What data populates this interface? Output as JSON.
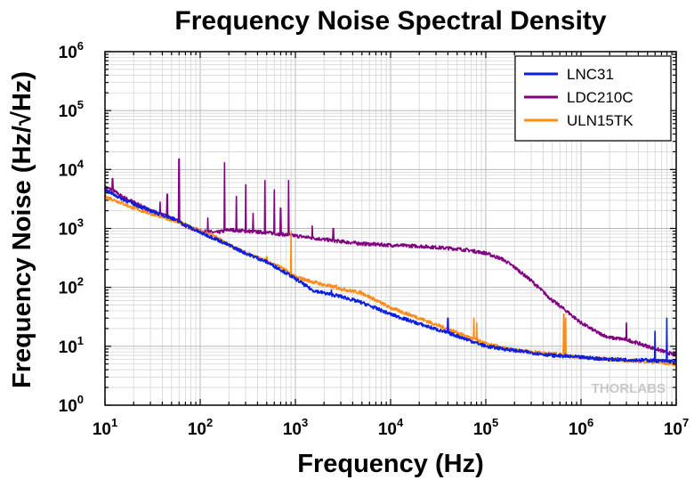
{
  "chart_data": {
    "type": "line",
    "title": "Frequency Noise Spectral Density",
    "xlabel": "Frequency (Hz)",
    "ylabel": "Frequency Noise (Hz/√Hz)",
    "x_scale": "log",
    "y_scale": "log",
    "xlim": [
      10,
      10000000
    ],
    "ylim": [
      1,
      1000000
    ],
    "x_ticks": [
      {
        "value": 10,
        "base": "10",
        "exp": "1"
      },
      {
        "value": 100,
        "base": "10",
        "exp": "2"
      },
      {
        "value": 1000,
        "base": "10",
        "exp": "3"
      },
      {
        "value": 10000,
        "base": "10",
        "exp": "4"
      },
      {
        "value": 100000,
        "base": "10",
        "exp": "5"
      },
      {
        "value": 1000000,
        "base": "10",
        "exp": "6"
      },
      {
        "value": 10000000,
        "base": "10",
        "exp": "7"
      }
    ],
    "y_ticks": [
      {
        "value": 1,
        "base": "10",
        "exp": "0"
      },
      {
        "value": 10,
        "base": "10",
        "exp": "1"
      },
      {
        "value": 100,
        "base": "10",
        "exp": "2"
      },
      {
        "value": 1000,
        "base": "10",
        "exp": "3"
      },
      {
        "value": 10000,
        "base": "10",
        "exp": "4"
      },
      {
        "value": 100000,
        "base": "10",
        "exp": "5"
      },
      {
        "value": 1000000,
        "base": "10",
        "exp": "6"
      }
    ],
    "grid": true,
    "legend_position": "top-right",
    "series": [
      {
        "name": "LDC210C",
        "color": "#800080",
        "x": [
          10,
          12,
          15,
          20,
          30,
          40,
          50,
          60,
          70,
          100,
          150,
          200,
          300,
          500,
          700,
          1000,
          2000,
          3000,
          5000,
          10000,
          20000,
          50000,
          70000,
          100000,
          150000,
          200000,
          300000,
          500000,
          700000,
          1000000,
          1500000,
          2000000,
          3000000,
          5000000,
          10000000
        ],
        "y": [
          5000,
          4500,
          3500,
          2800,
          2000,
          1700,
          1500,
          1300,
          1100,
          900,
          850,
          950,
          900,
          850,
          800,
          750,
          650,
          600,
          550,
          520,
          500,
          450,
          420,
          380,
          300,
          220,
          130,
          60,
          40,
          25,
          17,
          14,
          13,
          10,
          7
        ],
        "spikes": [
          {
            "x": 12,
            "y": 7000
          },
          {
            "x": 38,
            "y": 2800
          },
          {
            "x": 45,
            "y": 3800
          },
          {
            "x": 60,
            "y": 15000
          },
          {
            "x": 120,
            "y": 1500
          },
          {
            "x": 180,
            "y": 13000
          },
          {
            "x": 240,
            "y": 3500
          },
          {
            "x": 300,
            "y": 5500
          },
          {
            "x": 360,
            "y": 1800
          },
          {
            "x": 480,
            "y": 6500
          },
          {
            "x": 600,
            "y": 4500
          },
          {
            "x": 850,
            "y": 6500
          },
          {
            "x": 700,
            "y": 2200
          },
          {
            "x": 1500,
            "y": 1100
          },
          {
            "x": 2500,
            "y": 1000
          },
          {
            "x": 3000000,
            "y": 25
          }
        ]
      },
      {
        "name": "ULN15TK",
        "color": "#ff8c1a",
        "x": [
          10,
          15,
          20,
          30,
          50,
          70,
          100,
          150,
          200,
          300,
          500,
          700,
          1000,
          2000,
          3000,
          5000,
          10000,
          20000,
          50000,
          100000,
          200000,
          500000,
          1000000,
          2000000,
          5000000,
          10000000
        ],
        "y": [
          3500,
          2700,
          2200,
          1800,
          1400,
          1150,
          900,
          700,
          520,
          380,
          280,
          220,
          150,
          110,
          95,
          80,
          45,
          30,
          17,
          11,
          8.5,
          7.5,
          6.5,
          6,
          5.5,
          5
        ],
        "spikes": [
          {
            "x": 500,
            "y": 330
          },
          {
            "x": 900,
            "y": 900
          },
          {
            "x": 1300,
            "y": 95
          },
          {
            "x": 2700,
            "y": 110
          },
          {
            "x": 75000,
            "y": 30
          },
          {
            "x": 80000,
            "y": 25
          },
          {
            "x": 660000,
            "y": 35
          },
          {
            "x": 690000,
            "y": 30
          }
        ]
      },
      {
        "name": "LNC31",
        "color": "#0a1fe0",
        "x": [
          10,
          15,
          20,
          30,
          50,
          70,
          100,
          150,
          200,
          300,
          500,
          700,
          1000,
          1500,
          2000,
          3000,
          5000,
          10000,
          20000,
          50000,
          100000,
          200000,
          500000,
          1000000,
          2000000,
          5000000,
          10000000
        ],
        "y": [
          4500,
          3200,
          2600,
          2000,
          1500,
          1150,
          850,
          650,
          520,
          380,
          270,
          200,
          140,
          90,
          80,
          70,
          55,
          35,
          24,
          15,
          10,
          8.5,
          7,
          6.5,
          6,
          5.8,
          5.5
        ],
        "spikes": [
          {
            "x": 2400,
            "y": 90
          },
          {
            "x": 40000,
            "y": 30
          },
          {
            "x": 6000000,
            "y": 18
          },
          {
            "x": 8000000,
            "y": 30
          }
        ]
      }
    ],
    "legend_order": [
      "LNC31",
      "LDC210C",
      "ULN15TK"
    ],
    "watermark": "THORLABS"
  }
}
